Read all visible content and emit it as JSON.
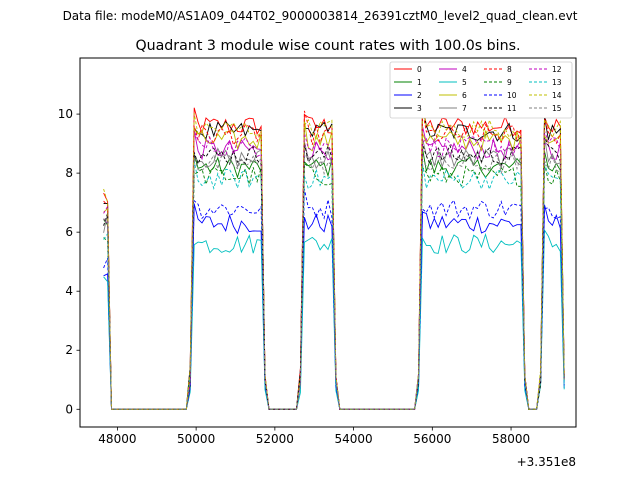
{
  "chart_data": {
    "type": "line",
    "suptitle": "Data file: modeM0/AS1A09_044T02_9000003814_26391cztM0_level2_quad_clean.evt",
    "title": "Quadrant 3 module wise count rates with 100.0s bins.",
    "xlabel": "",
    "ylabel": "",
    "x_offset_label": "+3.351e8",
    "xlim": [
      47050,
      59650
    ],
    "ylim": [
      -0.6,
      11.9
    ],
    "xticks": [
      48000,
      50000,
      52000,
      54000,
      56000,
      58000
    ],
    "xtick_labels": [
      "48000",
      "50000",
      "52000",
      "54000",
      "56000",
      "58000"
    ],
    "yticks": [
      0,
      2,
      4,
      6,
      8,
      10
    ],
    "ytick_labels": [
      "0",
      "2",
      "4",
      "6",
      "8",
      "10"
    ],
    "legend_position": "top-right",
    "segments": [
      {
        "x_start": 47650,
        "x_end": 47750,
        "shape": "spike"
      },
      {
        "x_start": 49850,
        "x_end": 51750,
        "shape": "plateau"
      },
      {
        "x_start": 52650,
        "x_end": 53550,
        "shape": "plateau"
      },
      {
        "x_start": 55650,
        "x_end": 58350,
        "shape": "plateau"
      },
      {
        "x_start": 58750,
        "x_end": 59350,
        "shape": "plateau"
      }
    ],
    "series": [
      {
        "name": "0",
        "color": "#ff0000",
        "dash": "solid",
        "level": 9.6
      },
      {
        "name": "1",
        "color": "#008000",
        "dash": "solid",
        "level": 8.2
      },
      {
        "name": "2",
        "color": "#0000ff",
        "dash": "solid",
        "level": 6.3
      },
      {
        "name": "3",
        "color": "#000000",
        "dash": "solid",
        "level": 9.4
      },
      {
        "name": "4",
        "color": "#bf00bf",
        "dash": "solid",
        "level": 8.8
      },
      {
        "name": "5",
        "color": "#00bfbf",
        "dash": "solid",
        "level": 5.6
      },
      {
        "name": "6",
        "color": "#bfbf00",
        "dash": "solid",
        "level": 9.1
      },
      {
        "name": "7",
        "color": "#808080",
        "dash": "solid",
        "level": 8.5
      },
      {
        "name": "8",
        "color": "#ff0000",
        "dash": "dashed",
        "level": 9.3
      },
      {
        "name": "9",
        "color": "#008000",
        "dash": "dashed",
        "level": 7.9
      },
      {
        "name": "10",
        "color": "#0000ff",
        "dash": "dashed",
        "level": 6.8
      },
      {
        "name": "11",
        "color": "#000000",
        "dash": "dashed",
        "level": 8.6
      },
      {
        "name": "12",
        "color": "#bf00bf",
        "dash": "dashed",
        "level": 8.9
      },
      {
        "name": "13",
        "color": "#00bfbf",
        "dash": "dashed",
        "level": 7.8
      },
      {
        "name": "14",
        "color": "#bfbf00",
        "dash": "dashed",
        "level": 9.5
      },
      {
        "name": "15",
        "color": "#808080",
        "dash": "dashed",
        "level": 8.3
      }
    ]
  }
}
